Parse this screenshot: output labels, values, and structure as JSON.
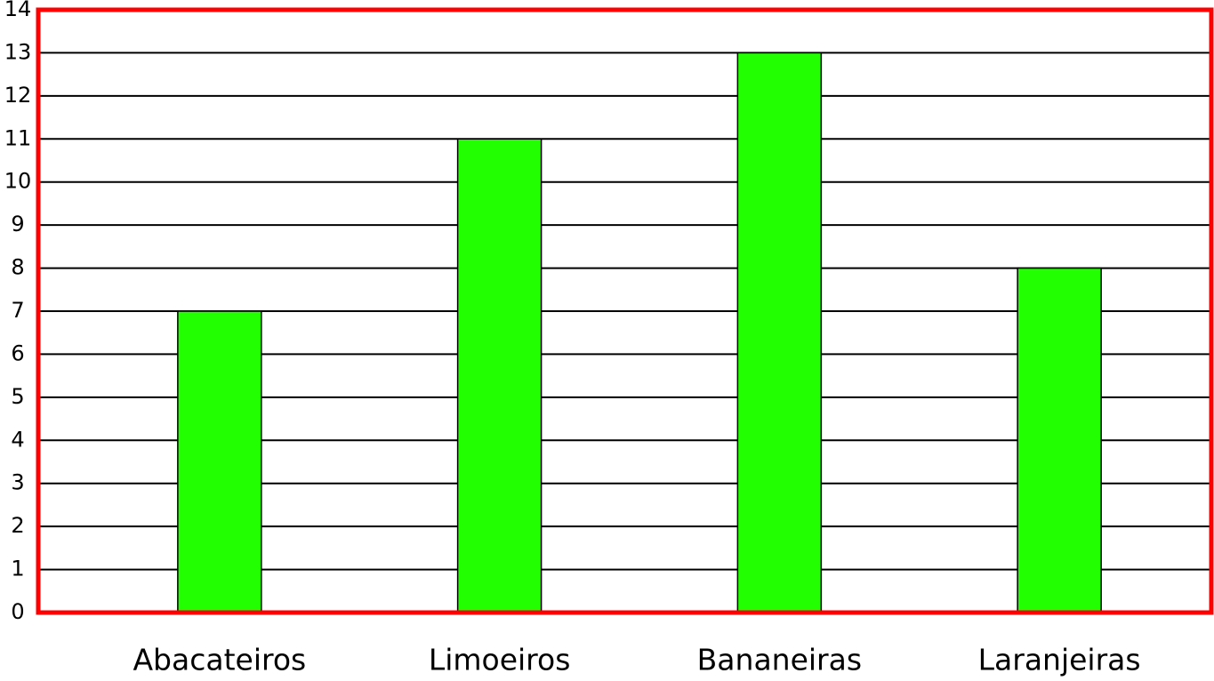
{
  "chart_data": {
    "type": "bar",
    "categories": [
      "Abacateiros",
      "Limoeiros",
      "Bananeiras",
      "Laranjeiras"
    ],
    "values": [
      7,
      11,
      13,
      8
    ],
    "color": "#22ff00",
    "ylim": [
      0,
      14
    ],
    "yticks": [
      0,
      1,
      2,
      3,
      4,
      5,
      6,
      7,
      8,
      9,
      10,
      11,
      12,
      13,
      14
    ],
    "grid": true,
    "frame_color": "#ff0000"
  }
}
